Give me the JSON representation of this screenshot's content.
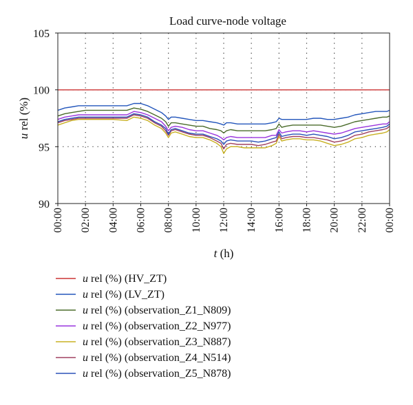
{
  "chart_data": {
    "type": "line",
    "title": "Load curve-node voltage",
    "xlabel_var": "t",
    "xlabel_unit": " (h)",
    "ylabel_var": "u",
    "ylabel_unit": " rel (%)",
    "xlim": [
      0,
      24
    ],
    "ylim": [
      90,
      105
    ],
    "yticks": [
      90,
      95,
      100,
      105
    ],
    "xticks": [
      "00:00",
      "02:00",
      "04:00",
      "06:00",
      "08:00",
      "10:00",
      "12:00",
      "14:00",
      "16:00",
      "18:00",
      "20:00",
      "22:00",
      "00:00"
    ],
    "grid": "dotted",
    "legend_position": "bottom",
    "x": [
      0,
      0.5,
      1,
      1.5,
      2,
      3,
      4,
      5,
      5.5,
      6,
      6.5,
      7,
      7.5,
      7.8,
      8,
      8.2,
      8.5,
      9,
      9.5,
      10,
      10.5,
      11,
      11.5,
      11.8,
      12,
      12.2,
      12.5,
      13,
      13.5,
      14,
      14.5,
      15,
      15.5,
      15.8,
      16,
      16.2,
      16.5,
      17,
      17.5,
      18,
      18.5,
      19,
      19.5,
      20,
      20.5,
      21,
      21.5,
      22,
      22.5,
      23,
      23.5,
      23.8,
      24
    ],
    "series": [
      {
        "name_var": "u",
        "name_rest": " rel (%) (HV_ZT)",
        "color": "#cc3333",
        "values": [
          100,
          100,
          100,
          100,
          100,
          100,
          100,
          100,
          100,
          100,
          100,
          100,
          100,
          100,
          100,
          100,
          100,
          100,
          100,
          100,
          100,
          100,
          100,
          100,
          100,
          100,
          100,
          100,
          100,
          100,
          100,
          100,
          100,
          100,
          100,
          100,
          100,
          100,
          100,
          100,
          100,
          100,
          100,
          100,
          100,
          100,
          100,
          100,
          100,
          100,
          100,
          100,
          100
        ]
      },
      {
        "name_var": "u",
        "name_rest": " rel (%) (LV_ZT)",
        "color": "#2255bb",
        "values": [
          98.2,
          98.4,
          98.5,
          98.6,
          98.6,
          98.6,
          98.6,
          98.6,
          98.8,
          98.8,
          98.6,
          98.3,
          98.0,
          97.7,
          97.4,
          97.6,
          97.6,
          97.5,
          97.4,
          97.3,
          97.3,
          97.2,
          97.1,
          97.0,
          96.9,
          97.1,
          97.1,
          97.0,
          97.0,
          97.0,
          97.0,
          97.0,
          97.1,
          97.2,
          97.5,
          97.4,
          97.4,
          97.4,
          97.4,
          97.4,
          97.5,
          97.5,
          97.4,
          97.4,
          97.5,
          97.6,
          97.8,
          97.9,
          98.0,
          98.1,
          98.1,
          98.1,
          98.2
        ]
      },
      {
        "name_var": "u",
        "name_rest": " rel (%) (observation_Z1_N809)",
        "color": "#4a6b2a",
        "values": [
          97.7,
          97.9,
          98.0,
          98.1,
          98.2,
          98.2,
          98.2,
          98.2,
          98.4,
          98.3,
          98.1,
          97.8,
          97.5,
          97.2,
          96.8,
          97.1,
          97.1,
          97.0,
          96.9,
          96.8,
          96.8,
          96.6,
          96.5,
          96.4,
          96.2,
          96.4,
          96.5,
          96.4,
          96.4,
          96.4,
          96.4,
          96.4,
          96.5,
          96.6,
          97.0,
          96.7,
          96.8,
          96.9,
          96.9,
          96.9,
          96.9,
          96.9,
          96.8,
          96.7,
          96.8,
          97.0,
          97.2,
          97.3,
          97.4,
          97.5,
          97.6,
          97.6,
          97.7
        ]
      },
      {
        "name_var": "u",
        "name_rest": " rel (%) (observation_Z2_N977)",
        "color": "#9933dd",
        "values": [
          97.4,
          97.6,
          97.7,
          97.8,
          97.8,
          97.8,
          97.8,
          97.8,
          98.1,
          98.0,
          97.8,
          97.5,
          97.2,
          96.8,
          96.4,
          96.7,
          96.8,
          96.7,
          96.5,
          96.4,
          96.4,
          96.2,
          96.0,
          95.8,
          95.6,
          95.8,
          95.9,
          95.8,
          95.8,
          95.8,
          95.8,
          95.8,
          96.0,
          96.0,
          96.5,
          96.2,
          96.3,
          96.4,
          96.4,
          96.3,
          96.4,
          96.3,
          96.2,
          96.1,
          96.2,
          96.4,
          96.6,
          96.7,
          96.8,
          96.9,
          97.0,
          97.0,
          97.2
        ]
      },
      {
        "name_var": "u",
        "name_rest": " rel (%) (observation_Z3_N887)",
        "color": "#c8b020",
        "values": [
          96.9,
          97.1,
          97.3,
          97.4,
          97.4,
          97.4,
          97.4,
          97.3,
          97.6,
          97.5,
          97.3,
          96.9,
          96.6,
          96.2,
          95.8,
          96.2,
          96.3,
          96.1,
          95.9,
          95.8,
          95.8,
          95.6,
          95.3,
          95.0,
          94.4,
          94.8,
          95.0,
          95.0,
          94.9,
          94.9,
          94.9,
          94.9,
          95.1,
          95.3,
          95.9,
          95.5,
          95.6,
          95.7,
          95.7,
          95.6,
          95.6,
          95.5,
          95.3,
          95.1,
          95.2,
          95.4,
          95.7,
          95.8,
          96.0,
          96.1,
          96.2,
          96.3,
          96.5
        ]
      },
      {
        "name_var": "u",
        "name_rest": " rel (%) (observation_Z4_N514)",
        "color": "#a04060",
        "values": [
          97.1,
          97.3,
          97.4,
          97.5,
          97.5,
          97.5,
          97.5,
          97.5,
          97.8,
          97.7,
          97.5,
          97.1,
          96.8,
          96.4,
          96.0,
          96.4,
          96.5,
          96.3,
          96.1,
          96.0,
          96.0,
          95.8,
          95.5,
          95.3,
          94.8,
          95.2,
          95.3,
          95.2,
          95.2,
          95.2,
          95.1,
          95.2,
          95.4,
          95.5,
          96.1,
          95.7,
          95.8,
          95.9,
          95.9,
          95.8,
          95.8,
          95.7,
          95.6,
          95.4,
          95.5,
          95.7,
          96.0,
          96.1,
          96.3,
          96.4,
          96.5,
          96.6,
          96.8
        ]
      },
      {
        "name_var": "u",
        "name_rest": " rel (%) (observation_Z5_N878)",
        "color": "#2a50b8",
        "values": [
          97.2,
          97.4,
          97.5,
          97.6,
          97.6,
          97.6,
          97.6,
          97.6,
          97.9,
          97.8,
          97.6,
          97.2,
          96.9,
          96.6,
          96.1,
          96.5,
          96.6,
          96.4,
          96.2,
          96.1,
          96.1,
          95.9,
          95.7,
          95.5,
          95.2,
          95.5,
          95.6,
          95.5,
          95.5,
          95.5,
          95.4,
          95.5,
          95.7,
          95.8,
          96.3,
          95.9,
          96.0,
          96.1,
          96.1,
          96.0,
          96.1,
          96.0,
          95.9,
          95.7,
          95.8,
          96.0,
          96.3,
          96.4,
          96.5,
          96.6,
          96.7,
          96.8,
          97.0
        ]
      }
    ]
  }
}
